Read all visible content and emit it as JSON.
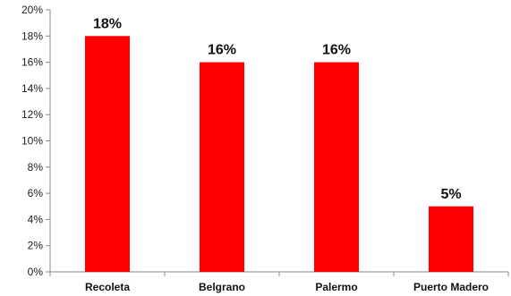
{
  "chart_data": {
    "type": "bar",
    "categories": [
      "Recoleta",
      "Belgrano",
      "Palermo",
      "Puerto Madero"
    ],
    "values": [
      18,
      16,
      16,
      5
    ],
    "data_labels": [
      "18%",
      "16%",
      "16%",
      "5%"
    ],
    "ylim": [
      0,
      20
    ],
    "yticks": [
      0,
      2,
      4,
      6,
      8,
      10,
      12,
      14,
      16,
      18,
      20
    ],
    "ytick_labels": [
      "0%",
      "2%",
      "4%",
      "6%",
      "8%",
      "10%",
      "12%",
      "14%",
      "16%",
      "18%",
      "20%"
    ],
    "grid": false,
    "legend": false,
    "bar_color": "#ff0000",
    "title": "",
    "xlabel": "",
    "ylabel": ""
  }
}
